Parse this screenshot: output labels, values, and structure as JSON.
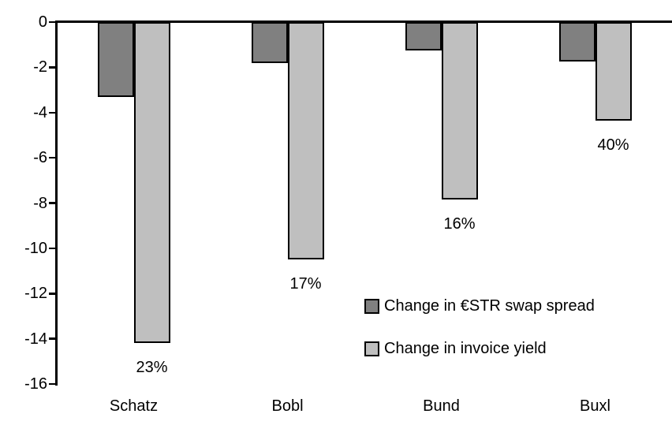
{
  "chart_data": {
    "type": "bar",
    "orientation": "vertical",
    "categories": [
      "Schatz",
      "Bobl",
      "Bund",
      "Buxl"
    ],
    "series": [
      {
        "name": "Change in €STR swap spread",
        "color": "#808080",
        "values": [
          -3.3,
          -1.8,
          -1.25,
          -1.75
        ]
      },
      {
        "name": "Change in invoice yield",
        "color": "#BFBFBF",
        "values": [
          -14.2,
          -10.5,
          -7.85,
          -4.35
        ],
        "data_labels": [
          "23%",
          "17%",
          "16%",
          "40%"
        ]
      }
    ],
    "title": "",
    "xlabel": "",
    "ylabel": "",
    "ylim": [
      -16,
      0
    ],
    "yticks": [
      0,
      -2,
      -4,
      -6,
      -8,
      -10,
      -12,
      -14,
      -16
    ],
    "ytick_labels": [
      "0",
      "-2",
      "-4",
      "-6",
      "-8",
      "-10",
      "-12",
      "-14",
      "-16"
    ],
    "grid": false,
    "legend_position": "inside-right",
    "colors": {
      "axis": "#000000",
      "bar_border": "#000000",
      "text": "#000000",
      "background": "#ffffff"
    }
  }
}
